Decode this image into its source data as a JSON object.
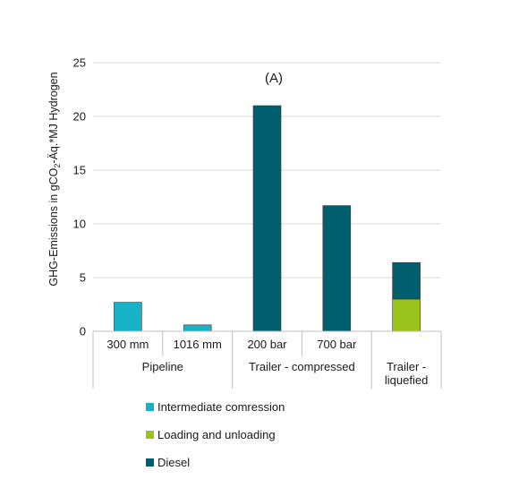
{
  "chart_data": {
    "type": "bar",
    "stacked": true,
    "annotation": "(A)",
    "ylabel": {
      "pre": "GHG-Emissions in gCO",
      "sub": "2",
      "post": "-Äq.*MJ Hydrogen"
    },
    "ylim": [
      0,
      25
    ],
    "yticks": [
      0,
      5,
      10,
      15,
      20,
      25
    ],
    "grid": true,
    "legend_position": "bottom",
    "categories": [
      "300 mm",
      "1016 mm",
      "200 bar",
      "700 bar",
      ""
    ],
    "groups": [
      {
        "label": "Pipeline",
        "categories": [
          "300 mm",
          "1016 mm"
        ]
      },
      {
        "label": "Trailer - compressed",
        "categories": [
          "200 bar",
          "700 bar"
        ]
      },
      {
        "label_lines": [
          "Trailer -",
          "liquefied"
        ],
        "categories": [
          ""
        ]
      }
    ],
    "series": [
      {
        "name": "Intermediate comression",
        "color": "#17b2c6",
        "values": [
          2.7,
          0.6,
          0,
          0,
          0
        ]
      },
      {
        "name": "Loading and unloading",
        "color": "#9ac31c",
        "values": [
          0,
          0,
          0,
          0,
          3.0
        ]
      },
      {
        "name": "Diesel",
        "color": "#005f6e",
        "values": [
          0,
          0,
          21.0,
          11.7,
          3.4
        ]
      }
    ]
  }
}
